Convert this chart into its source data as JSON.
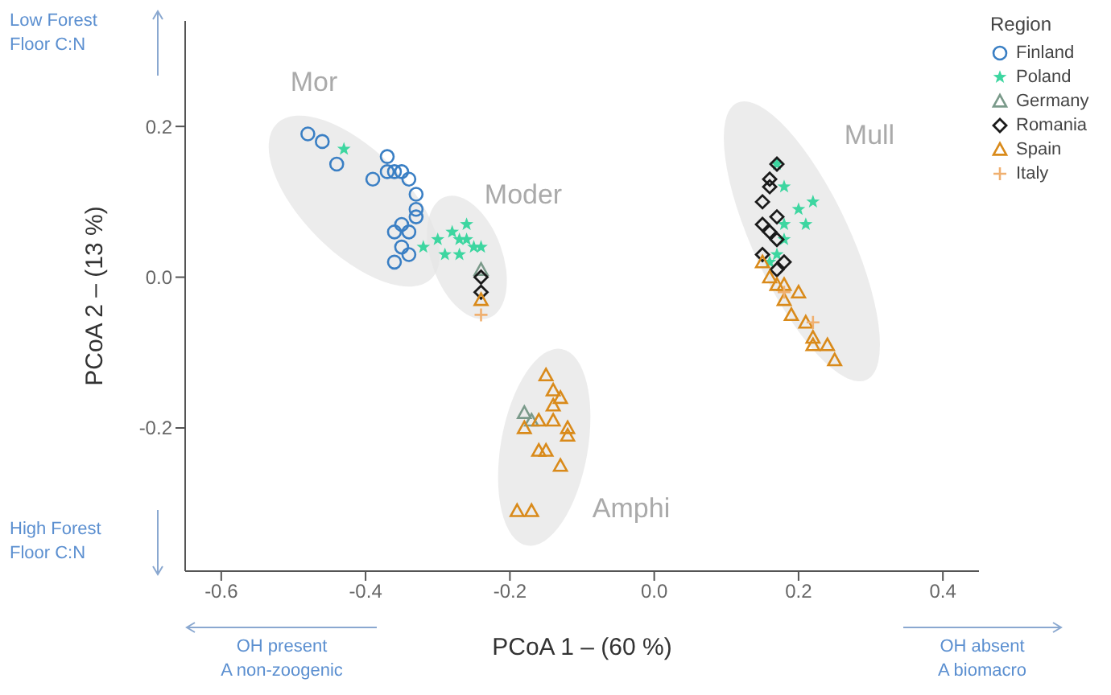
{
  "chart_data": {
    "type": "scatter",
    "xlabel": "PCoA 1 – (60 %)",
    "ylabel": "PCoA 2 – (13 %)",
    "legend_title": "Region",
    "legend": "top right",
    "grid": false,
    "xlim": [
      -0.65,
      0.45
    ],
    "ylim": [
      -0.39,
      0.34
    ],
    "xticks": [
      -0.6,
      -0.4,
      -0.2,
      {
        "value": 0,
        "label": "0.0"
      },
      0.2,
      0.4
    ],
    "yticks": [
      -0.2,
      {
        "value": 0,
        "label": "0.0"
      },
      0.2
    ],
    "annotations": [
      "Mor",
      "Moder",
      "Mull",
      "Amphi",
      "Low Forest Floor C:N",
      "High Forest Floor C:N",
      "OH present A non-zoogenic",
      "OH absent A biomacro"
    ],
    "series": [
      {
        "name": "Finland",
        "color": "#3a7fc4",
        "marker": "circle",
        "x": [
          -0.48,
          -0.46,
          -0.44,
          -0.39,
          -0.37,
          -0.36,
          -0.35,
          -0.34,
          -0.33,
          -0.33,
          -0.33,
          -0.35,
          -0.36,
          -0.34,
          -0.35,
          -0.36,
          -0.34,
          -0.37
        ],
        "values": [
          0.19,
          0.18,
          0.15,
          0.13,
          0.16,
          0.14,
          0.14,
          0.13,
          0.11,
          0.09,
          0.08,
          0.07,
          0.06,
          0.06,
          0.04,
          0.02,
          0.03,
          0.14
        ]
      },
      {
        "name": "Poland",
        "color": "#3dd6a0",
        "marker": "star",
        "x": [
          -0.43,
          -0.3,
          -0.28,
          -0.27,
          -0.26,
          -0.25,
          -0.29,
          -0.27,
          -0.24,
          -0.26,
          -0.32,
          0.17,
          0.18,
          0.2,
          0.21,
          0.18,
          0.17,
          0.16,
          0.18,
          0.22
        ],
        "values": [
          0.17,
          0.05,
          0.06,
          0.05,
          0.05,
          0.04,
          0.03,
          0.03,
          0.04,
          0.07,
          0.04,
          0.15,
          0.12,
          0.09,
          0.07,
          0.05,
          0.03,
          0.02,
          0.07,
          0.1
        ]
      },
      {
        "name": "Germany",
        "color": "#7a9a8a",
        "marker": "triangle",
        "x": [
          -0.18,
          -0.17,
          -0.24
        ],
        "values": [
          -0.18,
          -0.19,
          0.01
        ]
      },
      {
        "name": "Romania",
        "color": "#1a1a1a",
        "marker": "diamond",
        "x": [
          -0.24,
          -0.24,
          0.17,
          0.16,
          0.16,
          0.15,
          0.17,
          0.16,
          0.17,
          0.15,
          0.17,
          0.18,
          0.15
        ],
        "values": [
          -0.02,
          0.0,
          0.15,
          0.13,
          0.12,
          0.1,
          0.08,
          0.06,
          0.05,
          0.03,
          0.01,
          0.02,
          0.07
        ]
      },
      {
        "name": "Spain",
        "color": "#d98a1a",
        "marker": "triangle",
        "x": [
          -0.15,
          -0.14,
          -0.13,
          -0.14,
          -0.18,
          -0.16,
          -0.14,
          -0.12,
          -0.12,
          -0.16,
          -0.15,
          -0.13,
          -0.19,
          -0.17,
          -0.24,
          0.15,
          0.16,
          0.18,
          0.2,
          0.18,
          0.19,
          0.21,
          0.22,
          0.24,
          0.25,
          0.22,
          0.17
        ],
        "values": [
          -0.13,
          -0.15,
          -0.16,
          -0.17,
          -0.2,
          -0.19,
          -0.19,
          -0.2,
          -0.21,
          -0.23,
          -0.23,
          -0.25,
          -0.31,
          -0.31,
          -0.03,
          0.02,
          0.0,
          -0.01,
          -0.02,
          -0.03,
          -0.05,
          -0.06,
          -0.08,
          -0.09,
          -0.11,
          -0.09,
          -0.01
        ]
      },
      {
        "name": "Italy",
        "color": "#f0b070",
        "marker": "cross",
        "x": [
          -0.24,
          0.18,
          0.22
        ],
        "values": [
          -0.05,
          -0.02,
          -0.06
        ]
      }
    ]
  }
}
